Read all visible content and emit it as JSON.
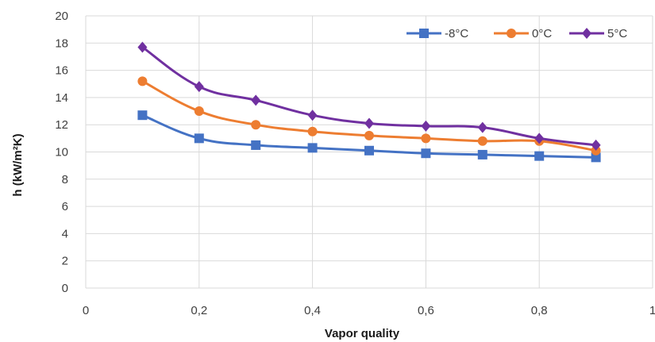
{
  "chart_data": {
    "type": "scatter",
    "title": "",
    "xlabel": "Vapor quality",
    "ylabel": "h (kW/m²K)",
    "xlim": [
      0,
      1
    ],
    "ylim": [
      0,
      20
    ],
    "x_ticks": [
      "0",
      "0,2",
      "0,4",
      "0,6",
      "0,8",
      "1"
    ],
    "x_tick_values": [
      0,
      0.2,
      0.4,
      0.6,
      0.8,
      1
    ],
    "y_ticks": [
      "0",
      "2",
      "4",
      "6",
      "8",
      "10",
      "12",
      "14",
      "16",
      "18",
      "20"
    ],
    "y_tick_values": [
      0,
      2,
      4,
      6,
      8,
      10,
      12,
      14,
      16,
      18,
      20
    ],
    "grid": true,
    "legend_position": "top-right",
    "series": [
      {
        "name": "-8°C",
        "color": "#4472C4",
        "marker": "square",
        "x": [
          0.1,
          0.2,
          0.3,
          0.4,
          0.5,
          0.6,
          0.7,
          0.8,
          0.9
        ],
        "y": [
          12.7,
          11.0,
          10.5,
          10.3,
          10.1,
          9.9,
          9.8,
          9.7,
          9.6
        ]
      },
      {
        "name": "0°C",
        "color": "#ED7D31",
        "marker": "circle",
        "x": [
          0.1,
          0.2,
          0.3,
          0.4,
          0.5,
          0.6,
          0.7,
          0.8,
          0.9
        ],
        "y": [
          15.2,
          13.0,
          12.0,
          11.5,
          11.2,
          11.0,
          10.8,
          10.8,
          10.1
        ]
      },
      {
        "name": "5°C",
        "color": "#7030A0",
        "marker": "diamond",
        "x": [
          0.1,
          0.2,
          0.3,
          0.4,
          0.5,
          0.6,
          0.7,
          0.8,
          0.9
        ],
        "y": [
          17.7,
          14.8,
          13.8,
          12.7,
          12.1,
          11.9,
          11.8,
          11.0,
          10.5
        ]
      }
    ]
  }
}
